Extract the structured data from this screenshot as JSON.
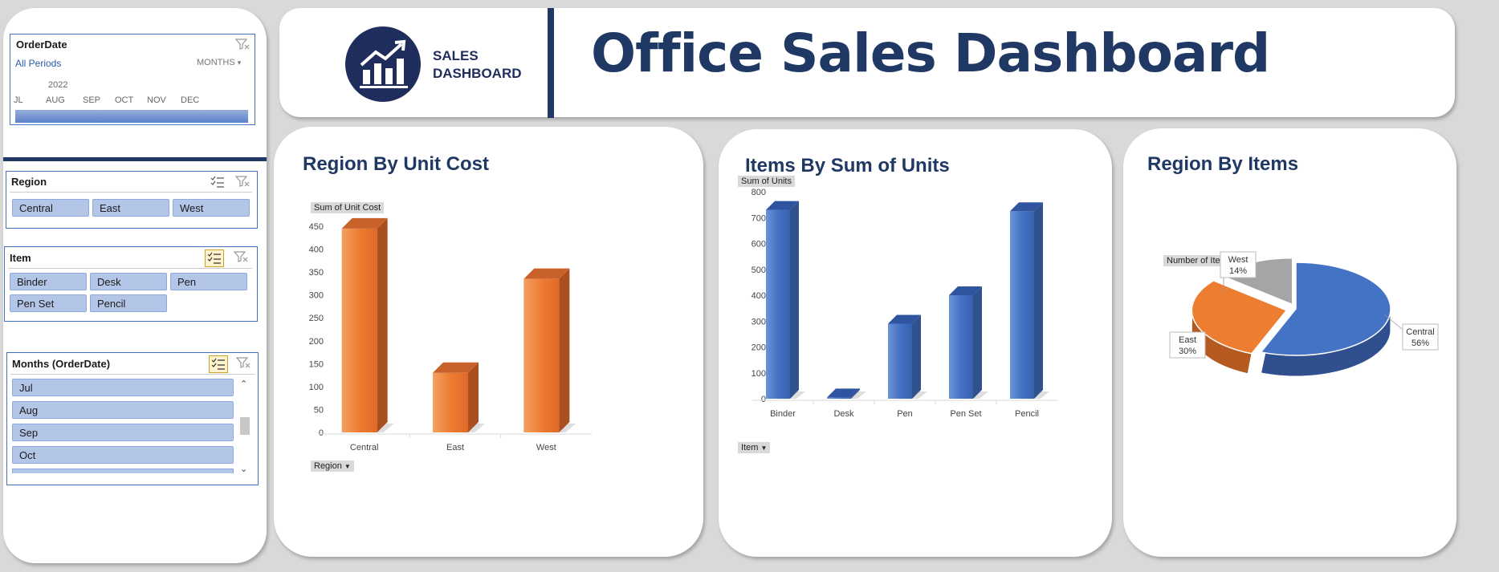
{
  "header": {
    "logo_line1": "SALES",
    "logo_line2": "DASHBOARD",
    "title": "Office Sales Dashboard"
  },
  "sidebar": {
    "timeline": {
      "title": "OrderDate",
      "period_label": "All Periods",
      "level": "MONTHS",
      "year": "2022",
      "months": [
        "JL",
        "AUG",
        "SEP",
        "OCT",
        "NOV",
        "DEC"
      ]
    },
    "region_slicer": {
      "title": "Region",
      "items": [
        "Central",
        "East",
        "West"
      ]
    },
    "item_slicer": {
      "title": "Item",
      "items": [
        "Binder",
        "Desk",
        "Pen",
        "Pen Set",
        "Pencil"
      ]
    },
    "months_slicer": {
      "title": "Months (OrderDate)",
      "items": [
        "Jul",
        "Aug",
        "Sep",
        "Oct"
      ]
    }
  },
  "colors": {
    "navy": "#1f2d5c",
    "orange": "#ed7d31",
    "blue": "#4472c4",
    "gray": "#a5a5a5",
    "slicer_fill": "#b4c6e7"
  },
  "chart_data": [
    {
      "type": "bar",
      "title": "Region By Unit Cost",
      "value_field": "Sum of Unit Cost",
      "axis_field": "Region",
      "categories": [
        "Central",
        "East",
        "West"
      ],
      "values": [
        445,
        130,
        335
      ],
      "ylim": [
        0,
        450
      ],
      "yticks": [
        "0",
        "50",
        "100",
        "150",
        "200",
        "250",
        "300",
        "350",
        "400",
        "450"
      ]
    },
    {
      "type": "bar",
      "title": "Items By Sum of Units",
      "value_field": "Sum of Units",
      "axis_field": "Item",
      "categories": [
        "Binder",
        "Desk",
        "Pen",
        "Pen Set",
        "Pencil"
      ],
      "values": [
        730,
        5,
        290,
        400,
        725
      ],
      "ylim": [
        0,
        800
      ],
      "yticks": [
        "0",
        "100",
        "200",
        "300",
        "400",
        "500",
        "600",
        "700",
        "800"
      ]
    },
    {
      "type": "pie",
      "title": "Region By Items",
      "value_field": "Number of Item",
      "categories": [
        "Central",
        "East",
        "West"
      ],
      "values": [
        56,
        30,
        14
      ],
      "labels": [
        "56%",
        "30%",
        "14%"
      ]
    }
  ]
}
